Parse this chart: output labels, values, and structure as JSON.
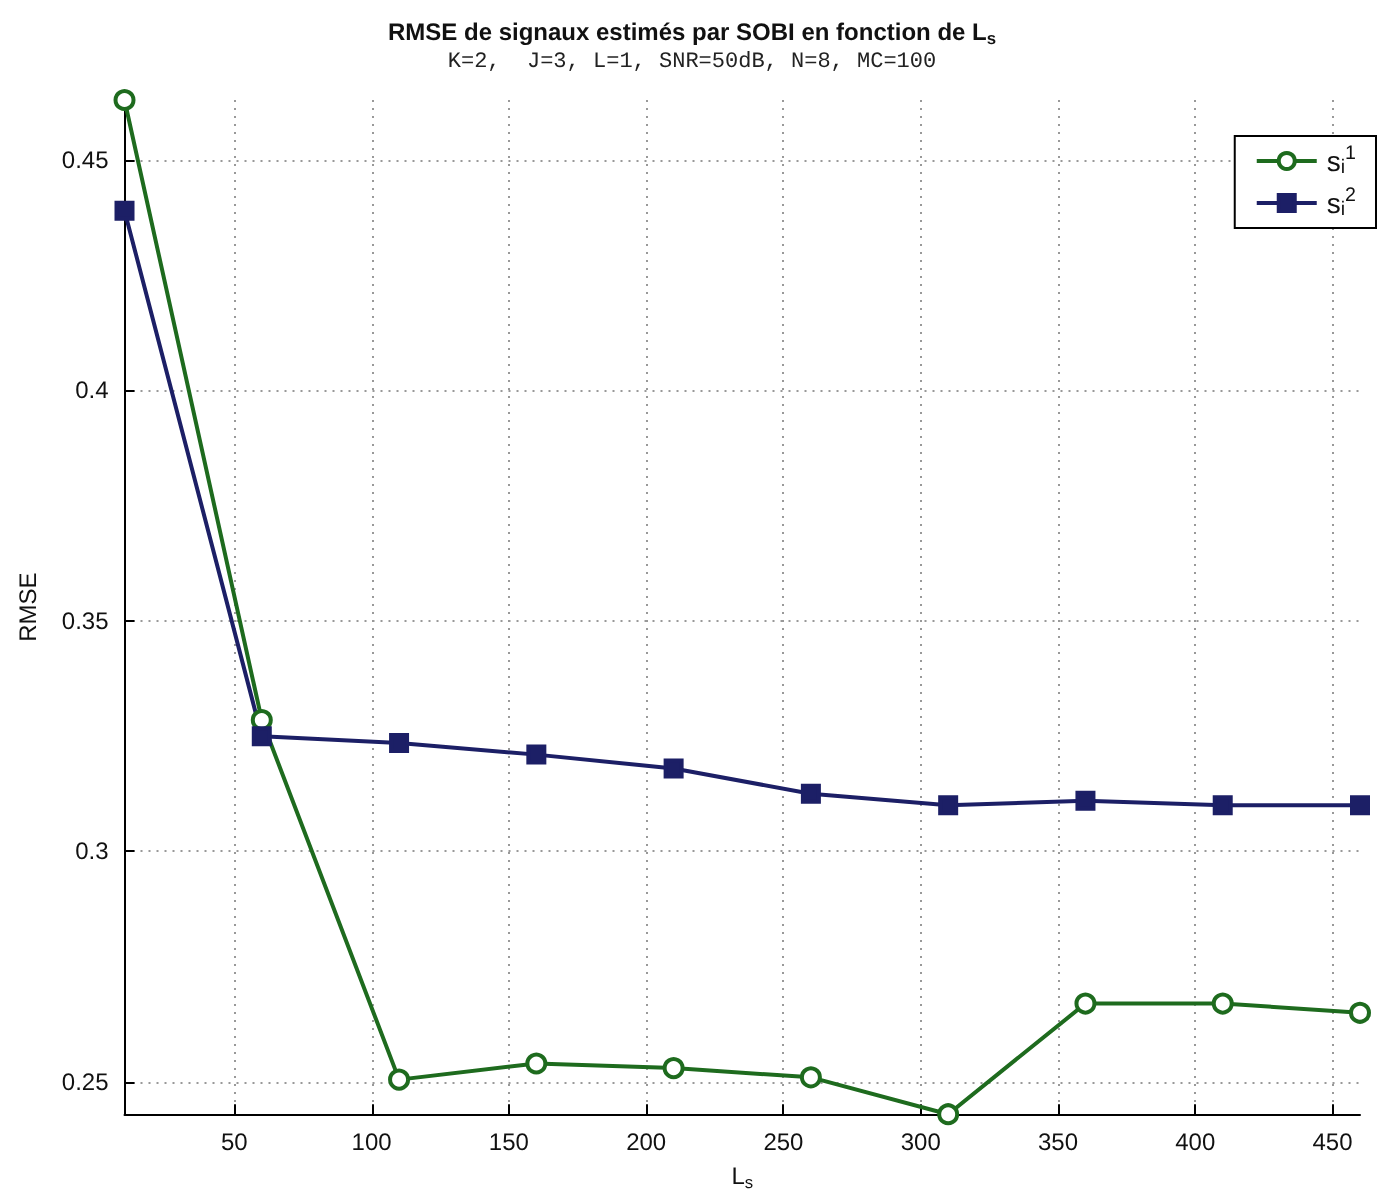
{
  "chart_data": {
    "type": "line",
    "title": "RMSE de signaux estimés par SOBI en fonction de L$_{s}$",
    "subtitle": "K=2,  J=3, L=1, SNR=50dB, N=8, MC=100",
    "xlabel": "L$_{s}$",
    "ylabel": "RMSE",
    "x": [
      10,
      60,
      110,
      160,
      210,
      260,
      310,
      360,
      410,
      460
    ],
    "series": [
      {
        "name": "s$_{i}$$^{1}$",
        "color": "#1e6b1e",
        "marker": "circle",
        "values": [
          0.463,
          0.3285,
          0.2505,
          0.254,
          0.253,
          0.251,
          0.243,
          0.267,
          0.267,
          0.265
        ]
      },
      {
        "name": "s$_{i}$$^{2}$",
        "color": "#1c1f66",
        "marker": "square",
        "values": [
          0.439,
          0.325,
          0.3235,
          0.321,
          0.318,
          0.3125,
          0.31,
          0.311,
          0.31,
          0.31
        ]
      }
    ],
    "xlim": [
      10,
      460
    ],
    "xticks": [
      50,
      100,
      150,
      200,
      250,
      300,
      350,
      400,
      450
    ],
    "ylim": [
      0.243,
      0.463
    ],
    "yticks": [
      0.25,
      0.3,
      0.35,
      0.4,
      0.45
    ],
    "grid": true,
    "legend": "top right",
    "line_style": "solid"
  }
}
